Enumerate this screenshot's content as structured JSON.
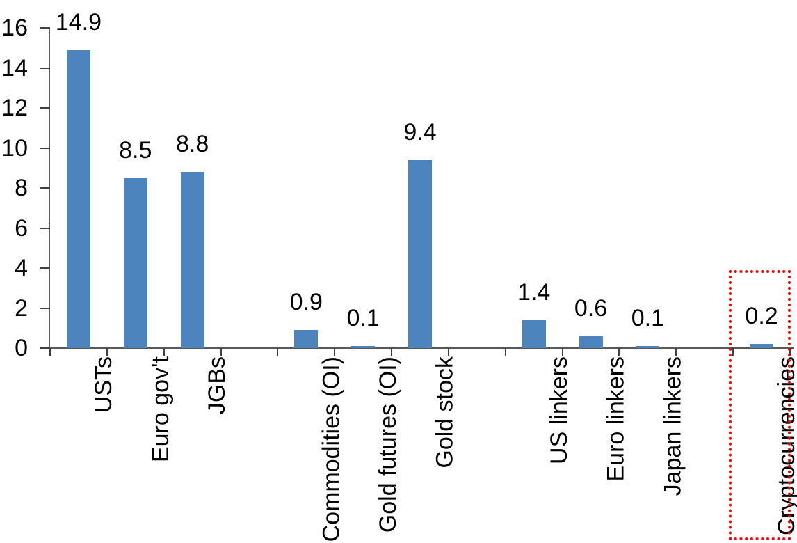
{
  "chart_data": {
    "type": "bar",
    "title": "",
    "xlabel": "",
    "ylabel": "",
    "categories": [
      "USTs",
      "Euro gov't",
      "JGBs",
      "",
      "Commodities (OI)",
      "Gold futures (OI)",
      "Gold stock",
      "",
      "US linkers",
      "Euro linkers",
      "Japan linkers",
      "",
      "Cryptocurrencies"
    ],
    "values": [
      14.9,
      8.5,
      8.8,
      null,
      0.9,
      0.1,
      9.4,
      null,
      1.4,
      0.6,
      0.1,
      null,
      0.2
    ],
    "value_labels": [
      "14.9",
      "8.5",
      "8.8",
      "",
      "0.9",
      "0.1",
      "9.4",
      "",
      "1.4",
      "0.6",
      "0.1",
      "",
      "0.2"
    ],
    "ylim": [
      0,
      16
    ],
    "y_ticks": [
      0,
      2,
      4,
      6,
      8,
      10,
      12,
      14,
      16
    ],
    "grid": false,
    "legend": false,
    "bar_color": "#4e84bd",
    "axis_color": "#595959",
    "tick_color": "#404040",
    "text_color": "#000000",
    "highlight": {
      "category": "Cryptocurrencies",
      "style": "dotted-box",
      "color": "#ff0000"
    }
  }
}
